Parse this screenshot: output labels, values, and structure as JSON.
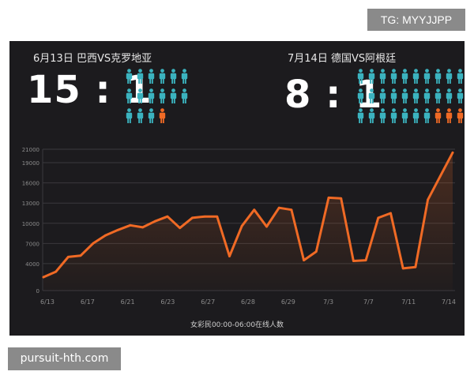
{
  "watermarks": {
    "top": "TG: MYYJJPP",
    "bottom": "pursuit-hth.com"
  },
  "matches": [
    {
      "title": "6月13日 巴西VS克罗地亚",
      "score": "15 : 1",
      "icons_teal": 15,
      "icons_orange": 1
    },
    {
      "title": "7月14日 德国VS阿根廷",
      "score": "8 : 1",
      "icons_teal": 27,
      "icons_orange": 3
    }
  ],
  "colors": {
    "teal": "#3bb3bf",
    "orange": "#f06a25",
    "panel": "#1c1b1e",
    "grid": "#3a393d"
  },
  "chart_data": {
    "type": "line",
    "title": "",
    "xlabel": "女彩民00:00-06:00在线人数",
    "ylabel": "",
    "ylim": [
      0,
      21000
    ],
    "y_ticks": [
      0,
      4000,
      7000,
      10000,
      13000,
      16000,
      19000,
      21000
    ],
    "x_tick_labels": [
      "6/13",
      "6/17",
      "6/21",
      "6/23",
      "6/27",
      "6/28",
      "6/29",
      "7/3",
      "7/7",
      "7/11",
      "7/14"
    ],
    "series": [
      {
        "values": [
          2000,
          2800,
          5000,
          5200,
          7000,
          8200,
          9000,
          9700,
          9400,
          10300,
          11000,
          9300,
          10800,
          11000,
          11000,
          5100,
          9600,
          12000,
          9500,
          12300,
          12000,
          4500,
          5800,
          13800,
          13700,
          4400,
          4500,
          10800,
          11500,
          3300,
          3500,
          13500,
          17000,
          20500
        ]
      }
    ]
  }
}
